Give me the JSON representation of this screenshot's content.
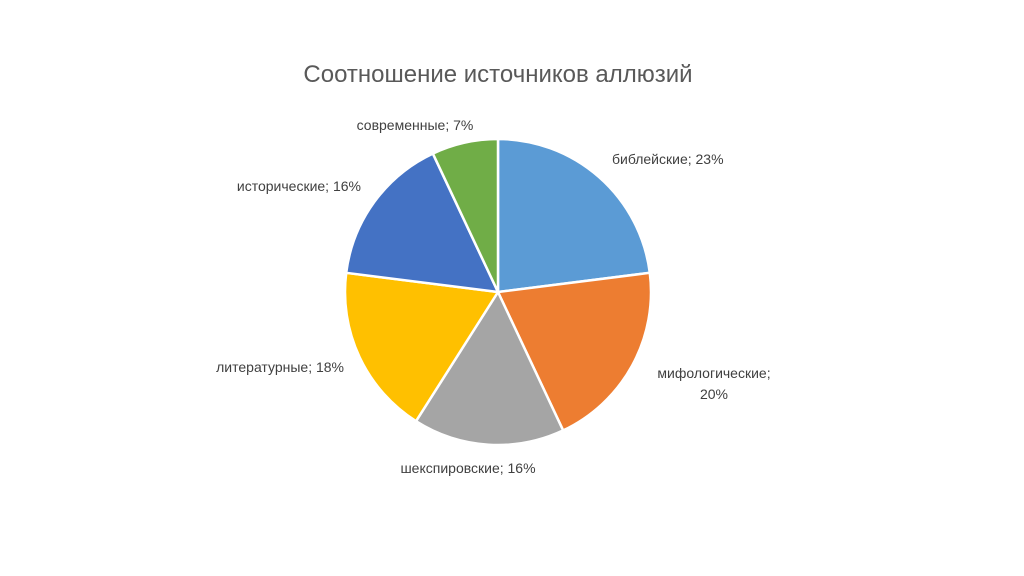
{
  "chart_data": {
    "type": "pie",
    "title": "Соотношение источников аллюзий",
    "categories": [
      "библейские",
      "мифологические",
      "шекспировские",
      "литературные",
      "исторические",
      "современные"
    ],
    "values": [
      23,
      20,
      16,
      18,
      16,
      7
    ],
    "unit": "%",
    "labels": [
      [
        "библейские; 23%"
      ],
      [
        "мифологические;",
        "20%"
      ],
      [
        "шекспировские; 16%"
      ],
      [
        "литературные; 18%"
      ],
      [
        "исторические; 16%"
      ],
      [
        "современные; 7%"
      ]
    ],
    "colors": [
      "#5B9BD5",
      "#ED7D31",
      "#A5A5A5",
      "#FFC000",
      "#4472C4",
      "#70AD47"
    ],
    "legend": "none",
    "start_angle": "12 o'clock, clockwise"
  }
}
